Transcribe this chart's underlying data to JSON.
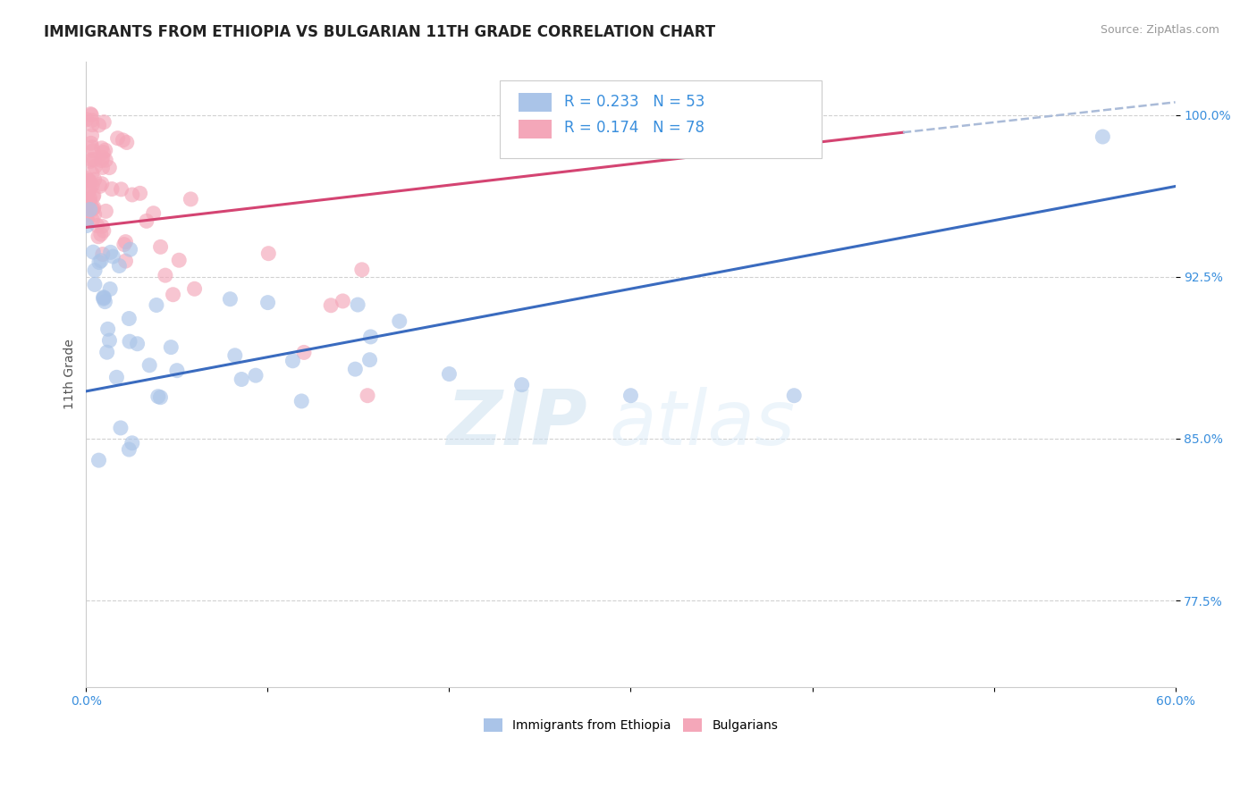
{
  "title": "IMMIGRANTS FROM ETHIOPIA VS BULGARIAN 11TH GRADE CORRELATION CHART",
  "source_text": "Source: ZipAtlas.com",
  "ylabel": "11th Grade",
  "xlim": [
    0.0,
    0.6
  ],
  "ylim": [
    0.735,
    1.025
  ],
  "xtick_positions": [
    0.0,
    0.1,
    0.2,
    0.3,
    0.4,
    0.5,
    0.6
  ],
  "xticklabels": [
    "0.0%",
    "",
    "",
    "",
    "",
    "",
    "60.0%"
  ],
  "ytick_positions": [
    0.775,
    0.85,
    0.925,
    1.0
  ],
  "ytick_labels": [
    "77.5%",
    "85.0%",
    "92.5%",
    "100.0%"
  ],
  "grid_color": "#cccccc",
  "background_color": "#ffffff",
  "blue_color": "#aac4e8",
  "pink_color": "#f4a7b9",
  "blue_line_color": "#3a6bbf",
  "pink_line_color": "#d44472",
  "dashed_line_color": "#aabbd8",
  "legend_blue_label": "R = 0.233   N = 53",
  "legend_pink_label": "R = 0.174   N = 78",
  "legend_bottom_blue": "Immigrants from Ethiopia",
  "legend_bottom_pink": "Bulgarians",
  "blue_line_x": [
    0.0,
    0.6
  ],
  "blue_line_y": [
    0.872,
    0.967
  ],
  "pink_line_x": [
    0.0,
    0.45
  ],
  "pink_line_y": [
    0.948,
    0.992
  ],
  "dashed_line_x": [
    0.45,
    0.6
  ],
  "dashed_line_y": [
    0.992,
    1.006
  ],
  "watermark_zip": "ZIP",
  "watermark_atlas": "atlas",
  "title_fontsize": 12,
  "axis_label_fontsize": 10,
  "tick_fontsize": 10,
  "legend_fontsize": 12
}
